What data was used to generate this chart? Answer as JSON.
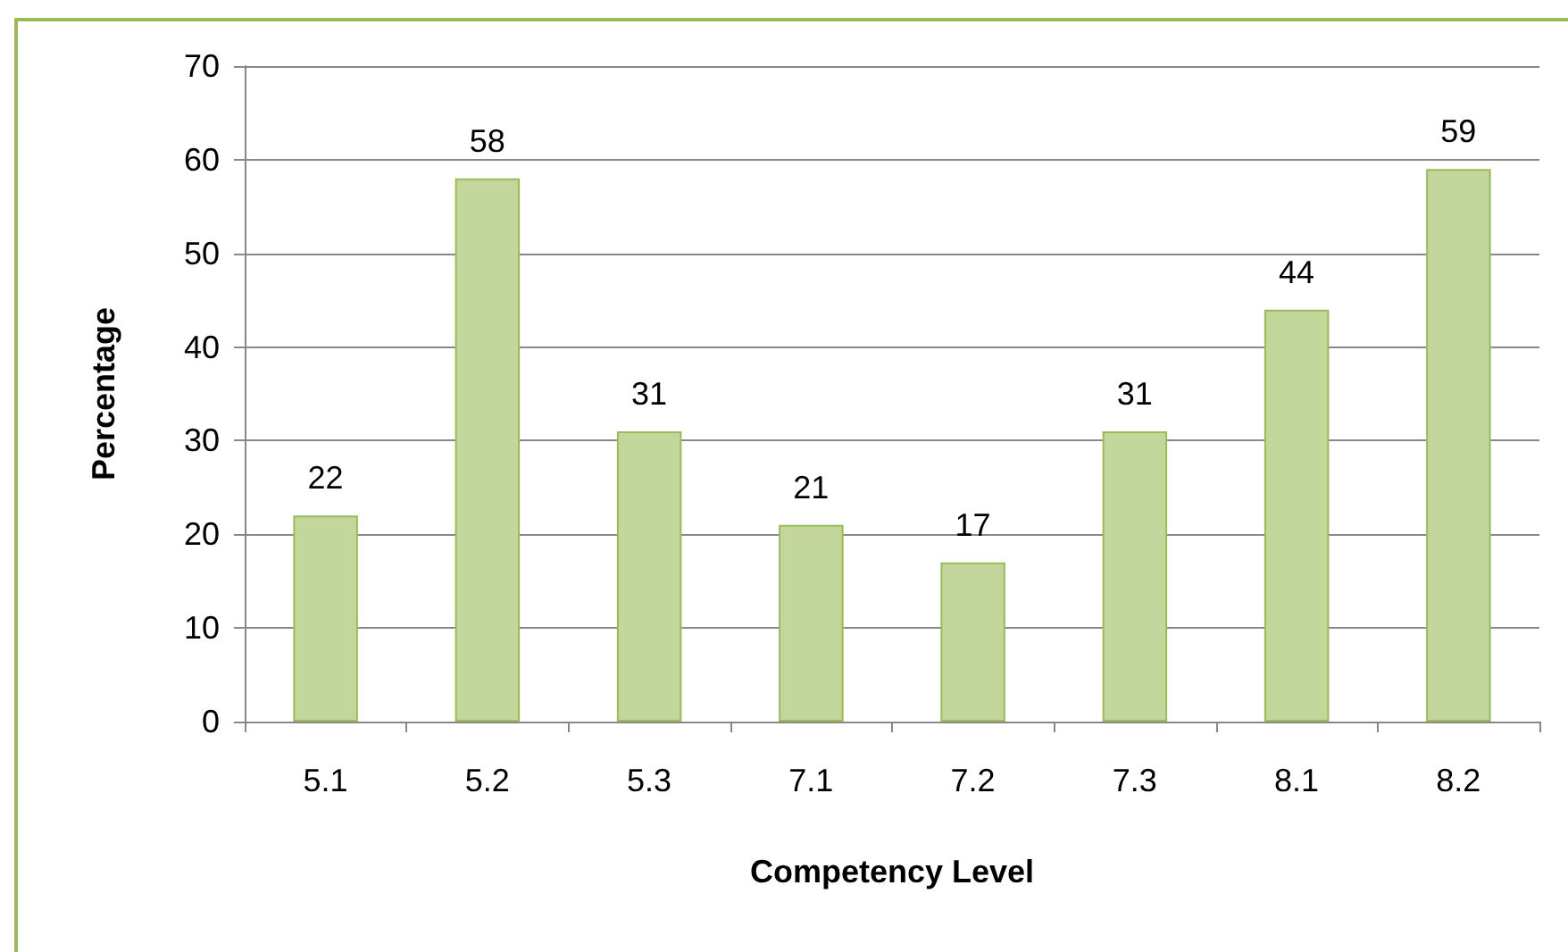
{
  "chart_data": {
    "type": "bar",
    "xlabel": "Competency Level",
    "ylabel": "Percentage",
    "categories": [
      "5.1",
      "5.2",
      "5.3",
      "7.1",
      "7.2",
      "7.3",
      "8.1",
      "8.2"
    ],
    "values": [
      22,
      58,
      31,
      21,
      17,
      31,
      44,
      59
    ],
    "color": "#c3d69b",
    "ylim": [
      0,
      70
    ],
    "yticks": [
      0,
      10,
      20,
      30,
      40,
      50,
      60,
      70
    ],
    "grid": "y",
    "data_labels": true
  }
}
